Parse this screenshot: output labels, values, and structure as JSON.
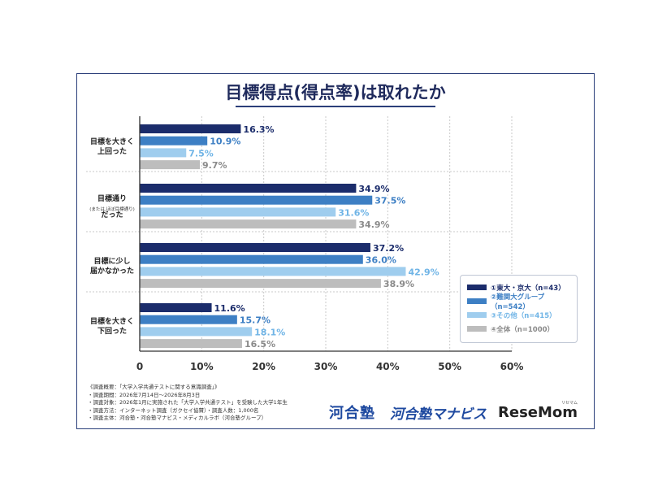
{
  "title": "目標得点(得点率)は取れたか",
  "chart_data": {
    "type": "bar",
    "orientation": "horizontal",
    "title": "目標得点(得点率)は取れたか",
    "categories": [
      "目標を大きく上回った",
      "目標通り(または,ほぼ目標通り)だった",
      "目標に少し届かなかった",
      "目標を大きく下回った"
    ],
    "category_lines": [
      [
        "目標を大きく",
        "上回った"
      ],
      [
        "目標通り",
        "(または,ほぼ目標通り)",
        "だった"
      ],
      [
        "目標に少し",
        "届かなかった"
      ],
      [
        "目標を大きく",
        "下回った"
      ]
    ],
    "series": [
      {
        "name": "①東大・京大（n=43）",
        "values": [
          16.3,
          34.9,
          37.2,
          11.6
        ],
        "labels": [
          "16.3%",
          "34.9%",
          "37.2%",
          "11.6%"
        ]
      },
      {
        "name": "②難関大グループ（n=542）",
        "values": [
          10.9,
          37.5,
          36.0,
          15.7
        ],
        "labels": [
          "10.9%",
          "37.5%",
          "36.0%",
          "15.7%"
        ]
      },
      {
        "name": "③その他（n=415）",
        "values": [
          7.5,
          31.6,
          42.9,
          18.1
        ],
        "labels": [
          "7.5%",
          "31.6%",
          "42.9%",
          "18.1%"
        ]
      },
      {
        "name": "④全体（n=1000）",
        "values": [
          9.7,
          34.9,
          38.9,
          16.5
        ],
        "labels": [
          "9.7%",
          "34.9%",
          "38.9%",
          "16.5%"
        ]
      }
    ],
    "xlim": [
      0,
      60
    ],
    "xticks": [
      "0",
      "10%",
      "20%",
      "30%",
      "40%",
      "50%",
      "60%"
    ],
    "grid": true,
    "legend_position": "bottom-right",
    "colors": [
      "#1b2c6b",
      "#3d7fc4",
      "#9fcdee",
      "#bdbdbd"
    ],
    "label_colors": [
      "#1b2c6b",
      "#3d7fc4",
      "#6fb4e6",
      "#8a8a8a"
    ]
  },
  "notes": [
    "《調査概要：「大学入学共通テストに関する意識調査」》",
    "・調査期間：2026年7月14日～2026年8月3日",
    "・調査対象：2026年1月に実施された「大学入学共通テスト」を受験した大学1年生",
    "・調査方法：インターネット調査（ガクセイ協賛）・調査人数：1,000名",
    "・調査主体：河合塾・河合塾マナビス・メディカルラボ（河合塾グループ）"
  ],
  "logos": {
    "kawai": "河合塾",
    "manabis": "河合塾マナビス",
    "resemom": "ReseMom",
    "resemom_kana": "リセマム"
  }
}
